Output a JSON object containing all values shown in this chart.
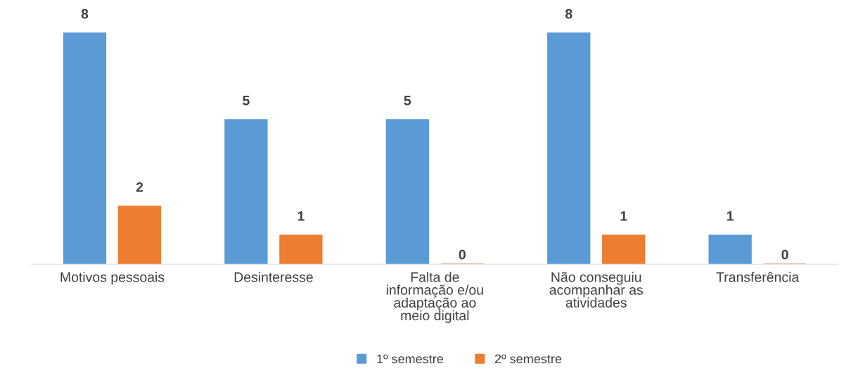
{
  "chart_data": {
    "type": "bar",
    "categories": [
      "Motivos pessoais",
      "Desinteresse",
      "Falta de\ninformação e/ou\nadaptação ao\nmeio digital",
      "Não conseguiu\nacompanhar as\natividades",
      "Transferência"
    ],
    "series": [
      {
        "name": "1º semestre",
        "color": "#5b9bd5",
        "values": [
          8,
          5,
          5,
          8,
          1
        ]
      },
      {
        "name": "2º semestre",
        "color": "#ed7d31",
        "values": [
          2,
          1,
          0,
          1,
          0
        ]
      }
    ],
    "data_labels": true,
    "legend": "bottom",
    "grid": false,
    "tick_labels": "x"
  }
}
